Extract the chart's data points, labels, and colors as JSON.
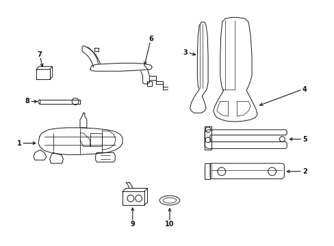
{
  "background_color": "#ffffff",
  "line_color": "#111111",
  "figsize": [
    4.89,
    3.6
  ],
  "dpi": 100
}
